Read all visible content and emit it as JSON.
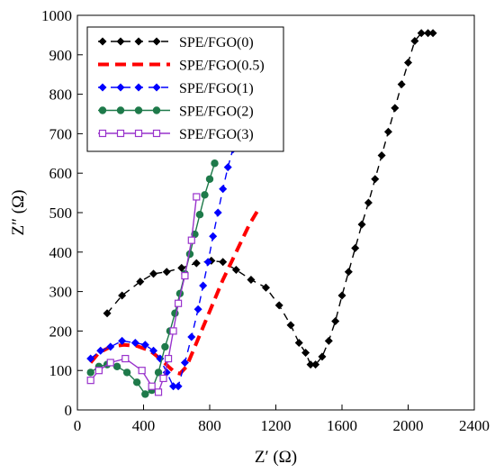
{
  "chart_data": {
    "type": "line",
    "title": "",
    "xlabel": "Z′ (Ω)",
    "ylabel": "Z″ (Ω)",
    "xlim": [
      0,
      2400
    ],
    "ylim": [
      0,
      1000
    ],
    "xticks": [
      0,
      400,
      800,
      1200,
      1600,
      2000,
      2400
    ],
    "yticks": [
      0,
      100,
      200,
      300,
      400,
      500,
      600,
      700,
      800,
      900,
      1000
    ],
    "legend_position": "top-left",
    "grid": false,
    "series": [
      {
        "name": "SPE/FGO(0)",
        "color": "#000000",
        "marker": "diamond",
        "dash": "dashed",
        "x": [
          180,
          270,
          380,
          460,
          540,
          630,
          720,
          810,
          880,
          960,
          1050,
          1140,
          1220,
          1290,
          1340,
          1380,
          1410,
          1440,
          1480,
          1520,
          1560,
          1600,
          1640,
          1680,
          1720,
          1760,
          1800,
          1840,
          1880,
          1920,
          1960,
          2000,
          2040,
          2080,
          2120,
          2150
        ],
        "y": [
          245,
          290,
          325,
          345,
          350,
          360,
          372,
          378,
          375,
          355,
          330,
          310,
          265,
          215,
          170,
          145,
          115,
          115,
          135,
          175,
          225,
          290,
          350,
          410,
          470,
          525,
          585,
          645,
          705,
          765,
          825,
          880,
          935,
          955,
          955,
          955
        ]
      },
      {
        "name": "SPE/FGO(0.5)",
        "color": "#ff0000",
        "marker": "none",
        "dash": "thick-dashed",
        "x": [
          80,
          130,
          200,
          280,
          360,
          440,
          500,
          550,
          590,
          620,
          660,
          720,
          800,
          880,
          960,
          1040,
          1090
        ],
        "y": [
          120,
          145,
          160,
          165,
          162,
          150,
          130,
          110,
          95,
          92,
          110,
          170,
          250,
          330,
          400,
          470,
          505
        ]
      },
      {
        "name": "SPE/FGO(1)",
        "color": "#0000ff",
        "marker": "diamond",
        "dash": "dashed",
        "x": [
          80,
          140,
          200,
          270,
          350,
          410,
          460,
          500,
          540,
          580,
          610,
          650,
          690,
          730,
          760,
          790,
          820,
          850,
          880,
          910,
          940
        ],
        "y": [
          130,
          150,
          160,
          175,
          170,
          165,
          150,
          130,
          95,
          60,
          60,
          120,
          185,
          255,
          315,
          375,
          440,
          500,
          560,
          615,
          660
        ]
      },
      {
        "name": "SPE/FGO(2)",
        "color": "#1e7a4a",
        "marker": "circle",
        "dash": "solid",
        "x": [
          80,
          130,
          180,
          240,
          300,
          360,
          410,
          450,
          490,
          530,
          560,
          590,
          620,
          650,
          680,
          710,
          740,
          770,
          800,
          830
        ],
        "y": [
          95,
          110,
          115,
          110,
          95,
          70,
          40,
          50,
          95,
          160,
          200,
          245,
          295,
          345,
          395,
          445,
          495,
          545,
          585,
          625
        ]
      },
      {
        "name": "SPE/FGO(3)",
        "color": "#9933cc",
        "marker": "square-open",
        "dash": "solid",
        "x": [
          80,
          130,
          200,
          290,
          390,
          450,
          490,
          520,
          550,
          580,
          610,
          650,
          690,
          720
        ],
        "y": [
          75,
          100,
          120,
          130,
          100,
          60,
          45,
          80,
          130,
          200,
          270,
          340,
          430,
          540
        ]
      }
    ]
  }
}
